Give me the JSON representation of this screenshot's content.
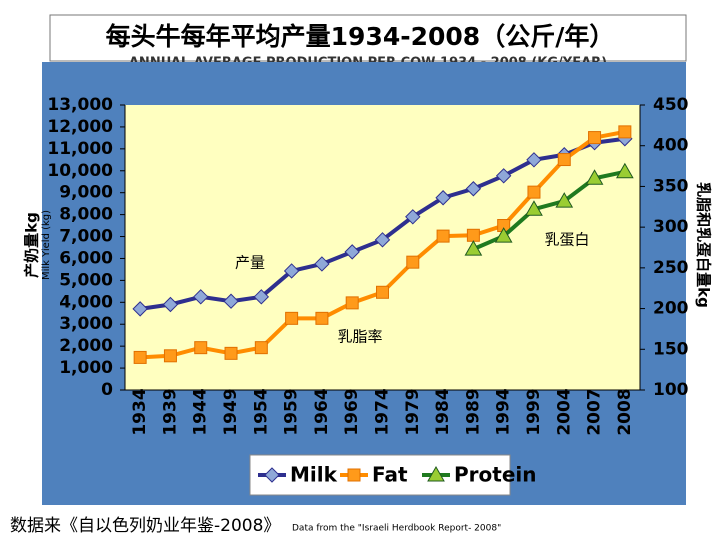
{
  "chart_data": {
    "type": "line",
    "title": "每头牛每年平均产量1934-2008（公斤/年）",
    "subtitle": "ANNUAL AVERAGE PRODUCTION PER COW 1934 - 2008 (KG/YEAR)",
    "y_label": "产奶量kg",
    "y_label_en": "Milk Yield (kg)",
    "y2_label": "乳脂和乳蛋白量kg",
    "annotations": [
      {
        "text": "产量",
        "series": 0
      },
      {
        "text": "乳脂率",
        "series": 1
      },
      {
        "text": "乳蛋白",
        "series": 2
      }
    ],
    "categories": [
      "1934",
      "1939",
      "1944",
      "1949",
      "1954",
      "1959",
      "1964",
      "1969",
      "1974",
      "1979",
      "1984",
      "1989",
      "1994",
      "1999",
      "2004",
      "2007",
      "2008"
    ],
    "series": [
      {
        "name": "Milk",
        "color": "#2e2f8f",
        "marker_color": "#8fa8d8",
        "marker": "diamond",
        "values": [
          3700,
          3900,
          4250,
          4050,
          4250,
          5430,
          5750,
          6300,
          6850,
          7900,
          8770,
          9180,
          9770,
          10500,
          10730,
          11280,
          11460
        ]
      },
      {
        "name": "Fat",
        "color": "#ff8c00",
        "marker_color": "#ff9a1a",
        "marker": "square",
        "axis": "y2",
        "values": [
          140,
          142,
          152,
          145,
          152,
          188,
          188,
          207,
          220,
          257,
          289,
          290,
          302,
          343,
          383,
          410,
          417
        ]
      },
      {
        "name": "Protein",
        "color": "#1f7a1f",
        "marker_color": "#9acd32",
        "marker": "triangle",
        "axis": "y2",
        "values": [
          null,
          null,
          null,
          null,
          null,
          null,
          null,
          null,
          null,
          null,
          null,
          273,
          289,
          322,
          332,
          360,
          368
        ]
      }
    ],
    "ylim": [
      0,
      13000
    ],
    "yticks": [
      0,
      {
        "value": 1000,
        "label": "1,000"
      },
      {
        "value": 2000,
        "label": "2,000"
      },
      {
        "value": 3000,
        "label": "3,000"
      },
      {
        "value": 4000,
        "label": "4,000"
      },
      {
        "value": 5000,
        "label": "5,000"
      },
      {
        "value": 6000,
        "label": "6,000"
      },
      {
        "value": 7000,
        "label": "7,000"
      },
      {
        "value": 8000,
        "label": "8,000"
      },
      {
        "value": 9000,
        "label": "9,000"
      },
      {
        "value": 10000,
        "label": "10,000"
      },
      {
        "value": 11000,
        "label": "11,000"
      },
      {
        "value": 12000,
        "label": "12,000"
      },
      {
        "value": 13000,
        "label": "13,000"
      }
    ],
    "y2lim": [
      100,
      450
    ],
    "y2ticks": [
      100,
      150,
      200,
      250,
      300,
      350,
      400,
      450
    ],
    "source": "数据来《自以色列奶业年鉴-2008》",
    "source_en": "Data from the \"Israeli Herdbook Report- 2008\""
  }
}
